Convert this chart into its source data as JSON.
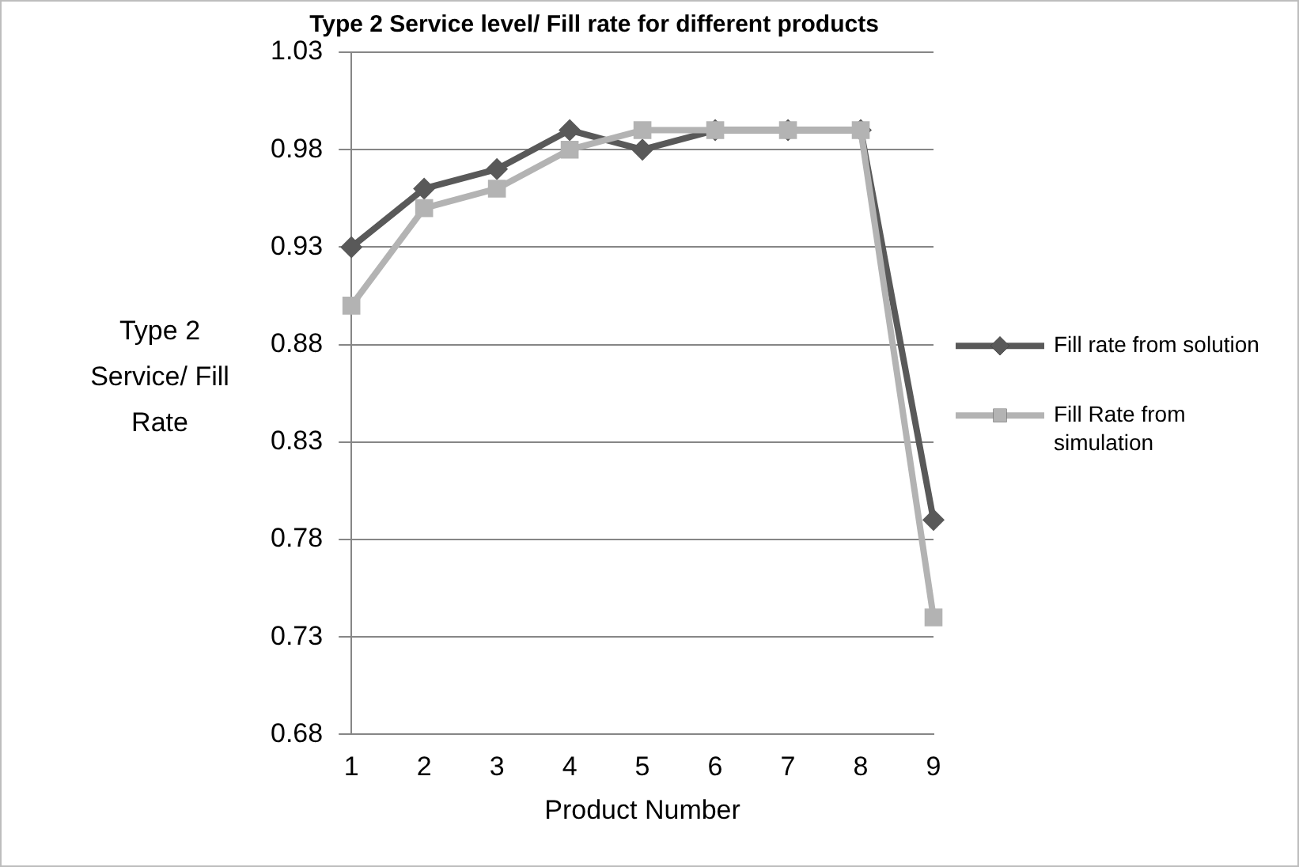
{
  "chart_data": {
    "type": "line",
    "title": "Type 2 Service level/ Fill rate for different products",
    "xlabel": "Product Number",
    "ylabel": "Type 2 Service/ Fill Rate",
    "categories": [
      "1",
      "2",
      "3",
      "4",
      "5",
      "6",
      "7",
      "8",
      "9"
    ],
    "series": [
      {
        "name": "Fill rate from solution",
        "color": "#595959",
        "marker": "diamond",
        "values": [
          0.93,
          0.96,
          0.97,
          0.99,
          0.98,
          0.99,
          0.99,
          0.99,
          0.79
        ]
      },
      {
        "name": "Fill Rate from simulation",
        "color": "#b3b3b3",
        "marker": "square",
        "values": [
          0.9,
          0.95,
          0.96,
          0.98,
          0.99,
          0.99,
          0.99,
          0.99,
          0.74
        ]
      }
    ],
    "ylim": [
      0.68,
      1.03
    ],
    "yticks": [
      0.68,
      0.73,
      0.78,
      0.83,
      0.88,
      0.93,
      0.98,
      1.03
    ],
    "grid": "y",
    "legend": "right",
    "line_style": "solid"
  }
}
